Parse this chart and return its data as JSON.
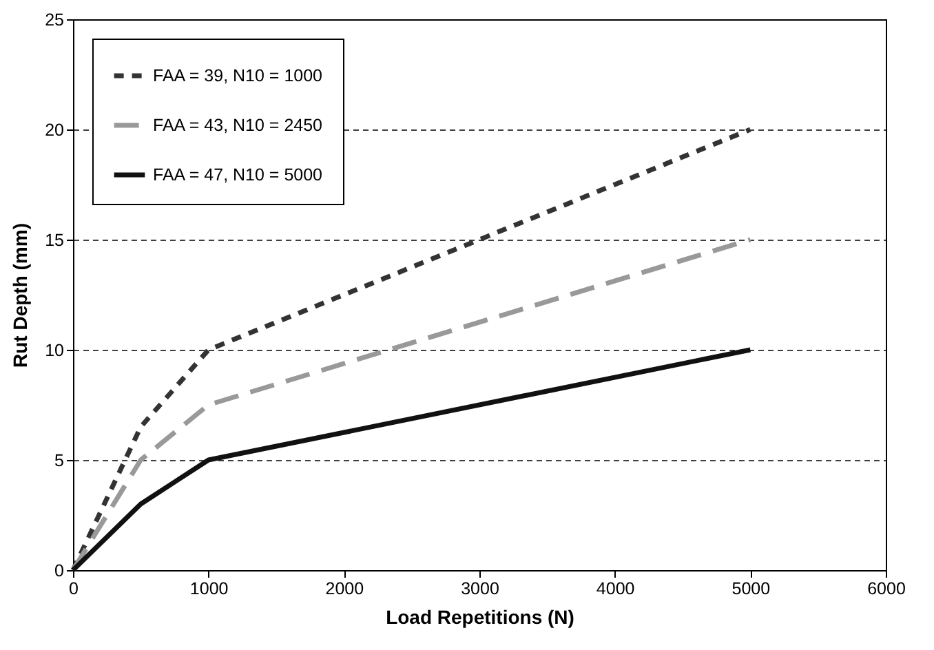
{
  "chart_data": {
    "type": "line",
    "xlabel": "Load Repetitions (N)",
    "ylabel": "Rut Depth (mm)",
    "x": [
      0,
      500,
      1000,
      5000
    ],
    "series": [
      {
        "name": "FAA = 39, N10 = 1000",
        "color": "#333333",
        "line_style": "dotted",
        "values": [
          0,
          6.5,
          10,
          20
        ]
      },
      {
        "name": "FAA = 43, N10 = 2450",
        "color": "#999999",
        "line_style": "dashed",
        "values": [
          0,
          5,
          7.5,
          15
        ]
      },
      {
        "name": "FAA = 47, N10 = 5000",
        "color": "#111111",
        "line_style": "solid",
        "values": [
          0,
          3,
          5,
          10
        ]
      }
    ],
    "xlim": [
      0,
      6000
    ],
    "xticks": [
      0,
      1000,
      2000,
      3000,
      4000,
      5000,
      6000
    ],
    "ylim": [
      0,
      25
    ],
    "yticks": [
      0,
      5,
      10,
      15,
      20,
      25
    ],
    "grid": "y",
    "legend": "top left"
  }
}
